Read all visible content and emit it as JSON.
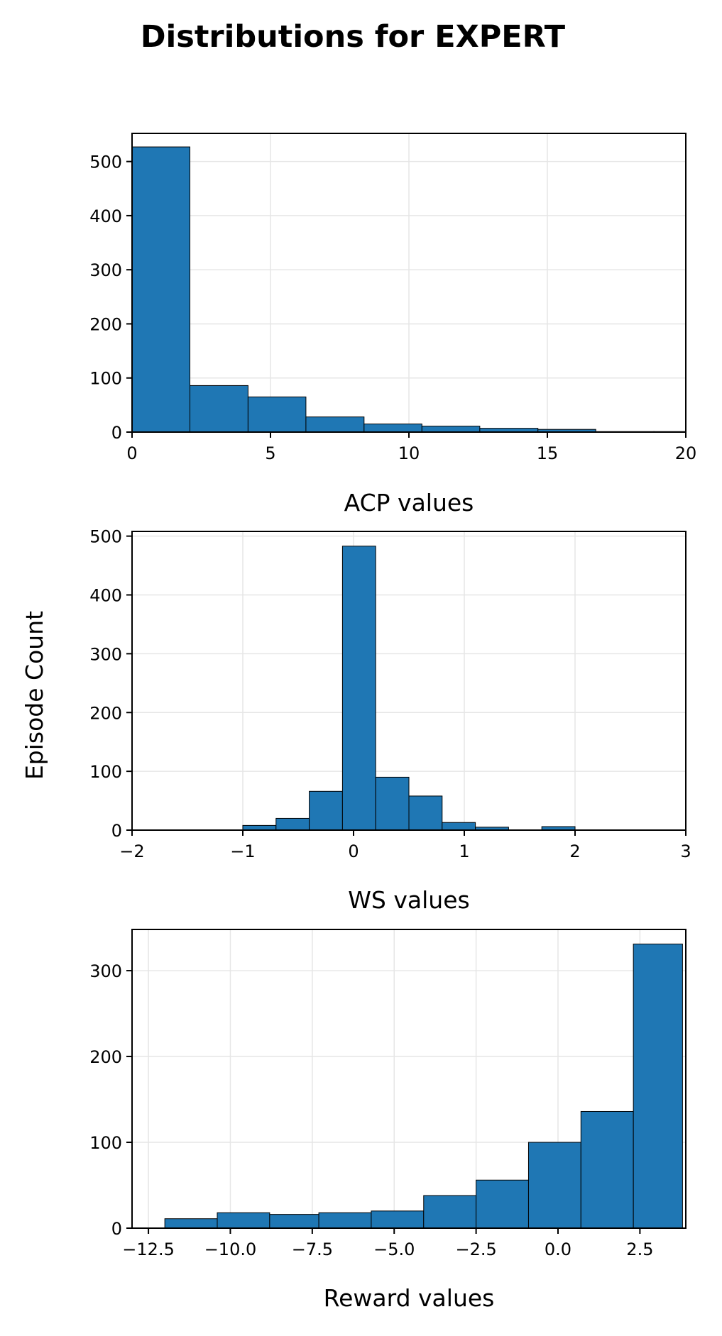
{
  "figure": {
    "title": "Distributions for EXPERT",
    "ylabel": "Episode Count"
  },
  "colors": {
    "bar_fill": "#1f77b4",
    "bar_edge": "#000000",
    "grid": "#e6e6e6"
  },
  "chart_data": [
    {
      "type": "bar",
      "title": "",
      "xlabel": "ACP values",
      "ylabel": "Episode Count",
      "xlim": [
        0,
        20
      ],
      "ylim": [
        0,
        552
      ],
      "xticks": [
        0,
        5,
        10,
        15,
        20
      ],
      "xtick_labels": [
        "0",
        "5",
        "10",
        "15",
        "20"
      ],
      "yticks": [
        0,
        100,
        200,
        300,
        400,
        500
      ],
      "ytick_labels": [
        "0",
        "100",
        "200",
        "300",
        "400",
        "500"
      ],
      "grid": true,
      "bins": [
        {
          "x0": 0.0,
          "x1": 2.09,
          "value": 527
        },
        {
          "x0": 2.09,
          "x1": 4.19,
          "value": 86
        },
        {
          "x0": 4.19,
          "x1": 6.28,
          "value": 65
        },
        {
          "x0": 6.28,
          "x1": 8.38,
          "value": 28
        },
        {
          "x0": 8.38,
          "x1": 10.47,
          "value": 15
        },
        {
          "x0": 10.47,
          "x1": 12.56,
          "value": 11
        },
        {
          "x0": 12.56,
          "x1": 14.66,
          "value": 7
        },
        {
          "x0": 14.66,
          "x1": 16.75,
          "value": 5
        },
        {
          "x0": 16.75,
          "x1": 18.85,
          "value": 1
        },
        {
          "x0": 18.85,
          "x1": 20.0,
          "value": 1
        }
      ]
    },
    {
      "type": "bar",
      "title": "",
      "xlabel": "WS values",
      "ylabel": "Episode Count",
      "xlim": [
        -2,
        3
      ],
      "ylim": [
        0,
        508
      ],
      "xticks": [
        -2,
        -1,
        0,
        1,
        2,
        3
      ],
      "xtick_labels": [
        "−2",
        "−1",
        "0",
        "1",
        "2",
        "3"
      ],
      "yticks": [
        0,
        100,
        200,
        300,
        400,
        500
      ],
      "ytick_labels": [
        "0",
        "100",
        "200",
        "300",
        "400",
        "500"
      ],
      "grid": true,
      "bins": [
        {
          "x0": -1.0,
          "x1": -0.7,
          "value": 8
        },
        {
          "x0": -0.7,
          "x1": -0.4,
          "value": 20
        },
        {
          "x0": -0.4,
          "x1": -0.1,
          "value": 66
        },
        {
          "x0": -0.1,
          "x1": 0.2,
          "value": 483
        },
        {
          "x0": 0.2,
          "x1": 0.5,
          "value": 90
        },
        {
          "x0": 0.5,
          "x1": 0.8,
          "value": 58
        },
        {
          "x0": 0.8,
          "x1": 1.1,
          "value": 13
        },
        {
          "x0": 1.1,
          "x1": 1.4,
          "value": 5
        },
        {
          "x0": 1.4,
          "x1": 1.7,
          "value": 0
        },
        {
          "x0": 1.7,
          "x1": 2.0,
          "value": 6
        }
      ]
    },
    {
      "type": "bar",
      "title": "",
      "xlabel": "Reward values",
      "ylabel": "Episode Count",
      "xlim": [
        -13.0,
        3.9
      ],
      "ylim": [
        0,
        348
      ],
      "xticks": [
        -12.5,
        -10.0,
        -7.5,
        -5.0,
        -2.5,
        0.0,
        2.5
      ],
      "xtick_labels": [
        "−12.5",
        "−10.0",
        "−7.5",
        "−5.0",
        "−2.5",
        "0.0",
        "2.5"
      ],
      "yticks": [
        0,
        100,
        200,
        300
      ],
      "ytick_labels": [
        "0",
        "100",
        "200",
        "300"
      ],
      "grid": true,
      "bins": [
        {
          "x0": -12.0,
          "x1": -10.4,
          "value": 11
        },
        {
          "x0": -10.4,
          "x1": -8.8,
          "value": 18
        },
        {
          "x0": -8.8,
          "x1": -7.3,
          "value": 16
        },
        {
          "x0": -7.3,
          "x1": -5.7,
          "value": 18
        },
        {
          "x0": -5.7,
          "x1": -4.1,
          "value": 20
        },
        {
          "x0": -4.1,
          "x1": -2.5,
          "value": 38
        },
        {
          "x0": -2.5,
          "x1": -0.9,
          "value": 56
        },
        {
          "x0": -0.9,
          "x1": 0.7,
          "value": 100
        },
        {
          "x0": 0.7,
          "x1": 2.3,
          "value": 136
        },
        {
          "x0": 2.3,
          "x1": 3.8,
          "value": 331
        }
      ]
    }
  ]
}
